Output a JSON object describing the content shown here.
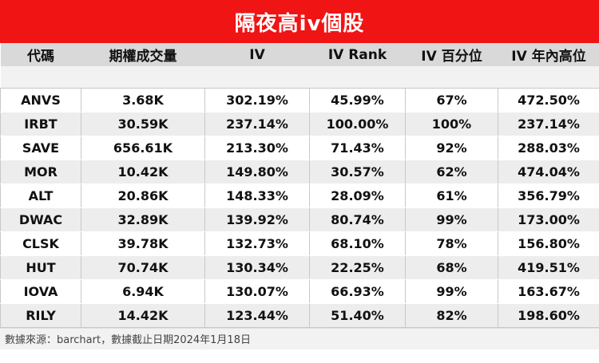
{
  "title": "隔夜高iv個股",
  "headers": [
    "代碼",
    "期權成交量",
    "IV",
    "IV Rank",
    "IV 百分位",
    "IV 年內高位"
  ],
  "rows": [
    [
      "ANVS",
      "3.68K",
      "302.19%",
      "45.99%",
      "67%",
      "472.50%"
    ],
    [
      "IRBT",
      "30.59K",
      "237.14%",
      "100.00%",
      "100%",
      "237.14%"
    ],
    [
      "SAVE",
      "656.61K",
      "213.30%",
      "71.43%",
      "92%",
      "288.03%"
    ],
    [
      "MOR",
      "10.42K",
      "149.80%",
      "30.57%",
      "62%",
      "474.04%"
    ],
    [
      "ALT",
      "20.86K",
      "148.33%",
      "28.09%",
      "61%",
      "356.79%"
    ],
    [
      "DWAC",
      "32.89K",
      "139.92%",
      "80.74%",
      "99%",
      "173.00%"
    ],
    [
      "CLSK",
      "39.78K",
      "132.73%",
      "68.10%",
      "78%",
      "156.80%"
    ],
    [
      "HUT",
      "70.74K",
      "130.34%",
      "22.25%",
      "68%",
      "419.51%"
    ],
    [
      "IOVA",
      "6.94K",
      "130.07%",
      "66.93%",
      "99%",
      "163.67%"
    ],
    [
      "RILY",
      "14.42K",
      "123.44%",
      "51.40%",
      "82%",
      "198.60%"
    ]
  ],
  "footer": "數據來源：barchart，數據截止日期2024年1月18日",
  "colors": {
    "title_bg": "#f01414",
    "header_bg": "#d9d9d9",
    "stripe": "#ededed"
  }
}
